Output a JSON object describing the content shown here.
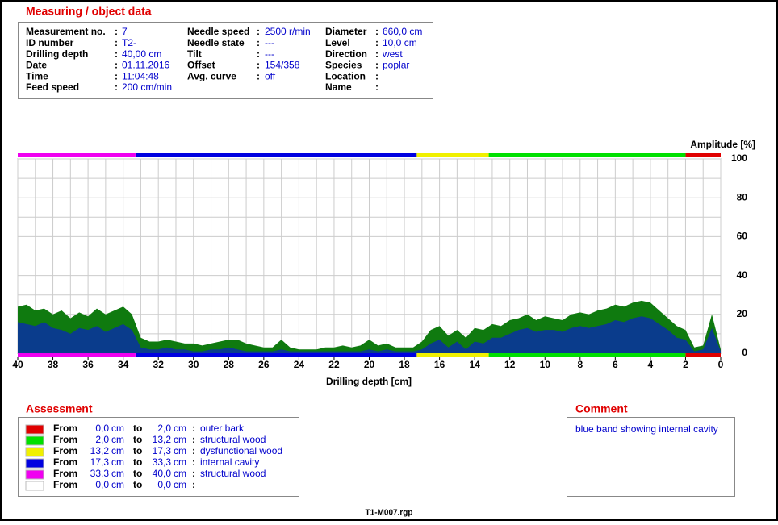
{
  "measuring": {
    "title": "Measuring / object data",
    "fields": [
      [
        {
          "label": "Measurement no.",
          "value": "7"
        },
        {
          "label": "ID number",
          "value": "T2-"
        },
        {
          "label": "Drilling depth",
          "value": "40,00 cm"
        },
        {
          "label": "Date",
          "value": "01.11.2016"
        },
        {
          "label": "Time",
          "value": "11:04:48"
        },
        {
          "label": "Feed speed",
          "value": "200 cm/min"
        }
      ],
      [
        {
          "label": "Needle speed",
          "value": "2500 r/min"
        },
        {
          "label": "Needle state",
          "value": "---"
        },
        {
          "label": "Tilt",
          "value": "---"
        },
        {
          "label": "Offset",
          "value": "154/358"
        },
        {
          "label": "Avg. curve",
          "value": "off"
        }
      ],
      [
        {
          "label": "Diameter",
          "value": "660,0 cm"
        },
        {
          "label": "Level",
          "value": "10,0 cm"
        },
        {
          "label": "Direction",
          "value": "west"
        },
        {
          "label": "Species",
          "value": "poplar"
        },
        {
          "label": "Location"
        },
        {
          "label": "Name"
        }
      ]
    ]
  },
  "chart_data": {
    "type": "area",
    "xlabel": "Drilling depth [cm]",
    "ylabel": "Amplitude [%]",
    "xlim": [
      40,
      0
    ],
    "ylim": [
      0,
      100
    ],
    "xticks": [
      40,
      38,
      36,
      34,
      32,
      30,
      28,
      26,
      24,
      22,
      20,
      18,
      16,
      14,
      12,
      10,
      8,
      6,
      4,
      2,
      0
    ],
    "xminor": [
      39,
      37,
      35,
      33,
      31,
      29,
      27,
      25,
      23,
      21,
      19,
      17,
      15,
      13,
      11,
      9,
      7,
      5,
      3,
      1
    ],
    "yticks": [
      0,
      20,
      40,
      60,
      80,
      100
    ],
    "yminor": [
      10,
      30,
      50,
      70,
      90
    ],
    "grid": true,
    "x": [
      40,
      39.5,
      39,
      38.5,
      38,
      37.5,
      37,
      36.5,
      36,
      35.5,
      35,
      34.5,
      34,
      33.5,
      33,
      32.5,
      32,
      31.5,
      31,
      30.5,
      30,
      29.5,
      29,
      28.5,
      28,
      27.5,
      27,
      26.5,
      26,
      25.5,
      25,
      24.5,
      24,
      23.5,
      23,
      22.5,
      22,
      21.5,
      21,
      20.5,
      20,
      19.5,
      19,
      18.5,
      18,
      17.5,
      17,
      16.5,
      16,
      15.5,
      15,
      14.5,
      14,
      13.5,
      13,
      12.5,
      12,
      11.5,
      11,
      10.5,
      10,
      9.5,
      9,
      8.5,
      8,
      7.5,
      7,
      6.5,
      6,
      5.5,
      5,
      4.5,
      4,
      3.5,
      3,
      2.5,
      2,
      1.5,
      1,
      0.5,
      0
    ],
    "series": [
      {
        "color": "#0f7a0f",
        "values": [
          24,
          25,
          22,
          23,
          20,
          22,
          18,
          21,
          19,
          23,
          20,
          22,
          24,
          20,
          8,
          6,
          6,
          7,
          6,
          5,
          5,
          4,
          5,
          6,
          7,
          7,
          5,
          4,
          3,
          3,
          7,
          3,
          2,
          2,
          2,
          3,
          3,
          4,
          3,
          4,
          7,
          4,
          5,
          3,
          3,
          3,
          6,
          12,
          14,
          9,
          12,
          8,
          13,
          12,
          15,
          14,
          17,
          18,
          20,
          17,
          19,
          18,
          17,
          20,
          21,
          20,
          22,
          23,
          25,
          24,
          26,
          27,
          26,
          22,
          18,
          14,
          12,
          3,
          4,
          20,
          2
        ]
      },
      {
        "color": "#0a3c8c",
        "values": [
          16,
          15,
          14,
          16,
          13,
          12,
          10,
          13,
          12,
          14,
          11,
          13,
          15,
          12,
          3,
          2,
          2,
          3,
          2,
          2,
          1,
          1,
          2,
          2,
          3,
          2,
          1,
          1,
          1,
          1,
          2,
          1,
          1,
          1,
          1,
          1,
          1,
          1,
          1,
          1,
          2,
          1,
          2,
          1,
          1,
          1,
          2,
          5,
          7,
          3,
          6,
          2,
          6,
          5,
          8,
          8,
          10,
          12,
          13,
          11,
          12,
          12,
          11,
          13,
          14,
          13,
          14,
          15,
          17,
          16,
          18,
          19,
          18,
          15,
          12,
          8,
          7,
          1,
          2,
          13,
          1
        ]
      }
    ]
  },
  "assessment": {
    "title": "Assessment",
    "from_label": "From",
    "to_label": "to",
    "unit": "cm",
    "rows": [
      {
        "color": "#e00000",
        "from": {
          "value": 0,
          "label": "0,0"
        },
        "to": {
          "value": 2,
          "label": "2,0"
        },
        "text": "outer bark"
      },
      {
        "color": "#00e000",
        "from": {
          "value": 2,
          "label": "2,0"
        },
        "to": {
          "value": 13.2,
          "label": "13,2"
        },
        "text": "structural wood"
      },
      {
        "color": "#f0f000",
        "from": {
          "value": 13.2,
          "label": "13,2"
        },
        "to": {
          "value": 17.3,
          "label": "17,3"
        },
        "text": "dysfunctional wood"
      },
      {
        "color": "#0000e0",
        "from": {
          "value": 17.3,
          "label": "17,3"
        },
        "to": {
          "value": 33.3,
          "label": "33,3"
        },
        "text": "internal cavity"
      },
      {
        "color": "#f000f0",
        "from": {
          "value": 33.3,
          "label": "33,3"
        },
        "to": {
          "value": 40,
          "label": "40,0"
        },
        "text": "structural wood"
      },
      {
        "color": "#ffffff",
        "from": {
          "value": 0,
          "label": "0,0"
        },
        "to": {
          "value": 0,
          "label": "0,0"
        }
      }
    ]
  },
  "comment": {
    "title": "Comment",
    "text": "blue band showing internal cavity"
  },
  "footer": "T1-M007.rgp"
}
